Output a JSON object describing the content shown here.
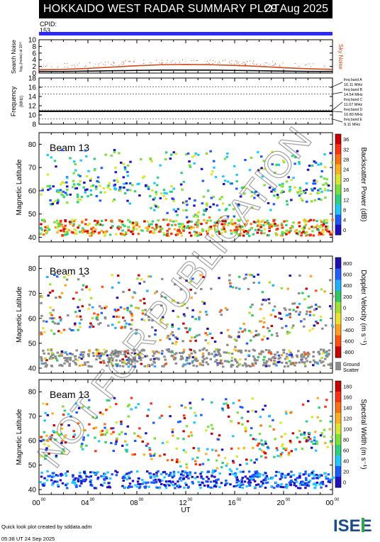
{
  "header": {
    "title": "HOKKAIDO WEST RADAR SUMMARY PLOT",
    "date": "29 Aug 2025",
    "cpid_label": "CPID:",
    "cpid_value": "153",
    "cpid_bar_color": "#2a2aff"
  },
  "watermark": "NOT FOR PUBLICATION",
  "footer": {
    "line1": "Quick look plot created by sddata.adm",
    "line2": "05:38 UT 24 Sep 2025"
  },
  "logo": {
    "text": "ISEE",
    "colors": [
      "#1a4c8c",
      "#2fa84f"
    ]
  },
  "chart_data": [
    {
      "type": "line",
      "name": "noise-panel",
      "ylabel": "Search Noise",
      "ylabel2": "log₁₀(noise) at 10³⁰",
      "right_label": "Sky Noise",
      "right_label_color": "#d24a1a",
      "ylim": [
        0,
        10
      ],
      "yticks": [
        0,
        2,
        4,
        6,
        8,
        10
      ],
      "x": [
        0,
        2,
        4,
        6,
        8,
        10,
        12,
        14,
        16,
        18,
        20,
        22,
        24
      ],
      "series": [
        {
          "name": "Sky Noise",
          "color": "#d24a1a",
          "values": [
            1.0,
            1.1,
            1.4,
            1.8,
            2.2,
            2.5,
            2.6,
            2.5,
            2.3,
            2.0,
            1.6,
            1.3,
            1.1
          ]
        },
        {
          "color": "#000000",
          "values": [
            0.5,
            0.5,
            0.6,
            0.7,
            0.8,
            0.9,
            0.9,
            0.9,
            0.8,
            0.7,
            0.6,
            0.5,
            0.5
          ]
        }
      ]
    },
    {
      "type": "line",
      "name": "frequency-panel",
      "ylabel": "Frequency",
      "yunit": "(MHz)",
      "ylim": [
        8,
        18
      ],
      "yticks": [
        8,
        10,
        12,
        14,
        16,
        18
      ],
      "bands": [
        {
          "label": "freq band A",
          "freq": "16.11 MHz",
          "value": 16.11
        },
        {
          "label": "freq band B",
          "freq": "14.54 MHz",
          "value": 14.54
        },
        {
          "label": "freq band C",
          "freq": "11.07 MHz",
          "value": 11.07
        },
        {
          "label": "freq band D",
          "freq": "10.80 MHz",
          "value": 10.8
        },
        {
          "label": "freq band E",
          "freq": "9.11 MHz",
          "value": 9.11
        }
      ],
      "operating_freq": 10.8
    },
    {
      "type": "heatmap",
      "name": "power-panel",
      "beam_label": "Beam 13",
      "ylabel": "Magnetic Latitude",
      "ylim": [
        38,
        85
      ],
      "yticks": [
        40,
        50,
        60,
        70,
        80
      ],
      "colorbar_label": "Backscatter Power (dB)",
      "colorbar_ticks": [
        "0",
        "4",
        "8",
        "12",
        "16",
        "20",
        "24",
        "28",
        "32",
        "36"
      ],
      "colorbar_colors": [
        "#2010c0",
        "#1a5aff",
        "#20c8ff",
        "#2ad280",
        "#7ae03a",
        "#d8e830",
        "#ffb020",
        "#ff7010",
        "#ff3010",
        "#c80000"
      ]
    },
    {
      "type": "heatmap",
      "name": "velocity-panel",
      "beam_label": "Beam 13",
      "ylabel": "Magnetic Latitude",
      "ylim": [
        38,
        85
      ],
      "yticks": [
        40,
        50,
        60,
        70,
        80
      ],
      "colorbar_label": "Doppler Velocity (m s⁻¹)",
      "colorbar_ticks": [
        "-800",
        "-600",
        "-400",
        "-200",
        "0",
        "200",
        "400",
        "600",
        "800"
      ],
      "colorbar_colors": [
        "#c80000",
        "#ff5010",
        "#ffa020",
        "#f0e030",
        "#a0e030",
        "#30c860",
        "#20b0ff",
        "#2060ff",
        "#2010b0"
      ],
      "ground_scatter_label": [
        "Ground",
        "Scatter"
      ],
      "ground_scatter_color": "#8c8c8c"
    },
    {
      "type": "heatmap",
      "name": "width-panel",
      "beam_label": "Beam 13",
      "ylabel": "Magnetic Latitude",
      "xlabel": "UT",
      "ylim": [
        38,
        85
      ],
      "yticks": [
        40,
        50,
        60,
        70,
        80
      ],
      "x_ticks": [
        "00",
        "04",
        "08",
        "12",
        "16",
        "20",
        "00"
      ],
      "x_tick_sup": "00",
      "colorbar_label": "Spectral Width (m s⁻¹)",
      "colorbar_ticks": [
        "0",
        "20",
        "40",
        "60",
        "80",
        "100",
        "120",
        "140",
        "160",
        "180"
      ],
      "colorbar_colors": [
        "#2010c0",
        "#1a5aff",
        "#20c8ff",
        "#2ad280",
        "#7ae03a",
        "#d8e830",
        "#ffb020",
        "#ff7010",
        "#ff3010",
        "#c80000"
      ]
    }
  ]
}
